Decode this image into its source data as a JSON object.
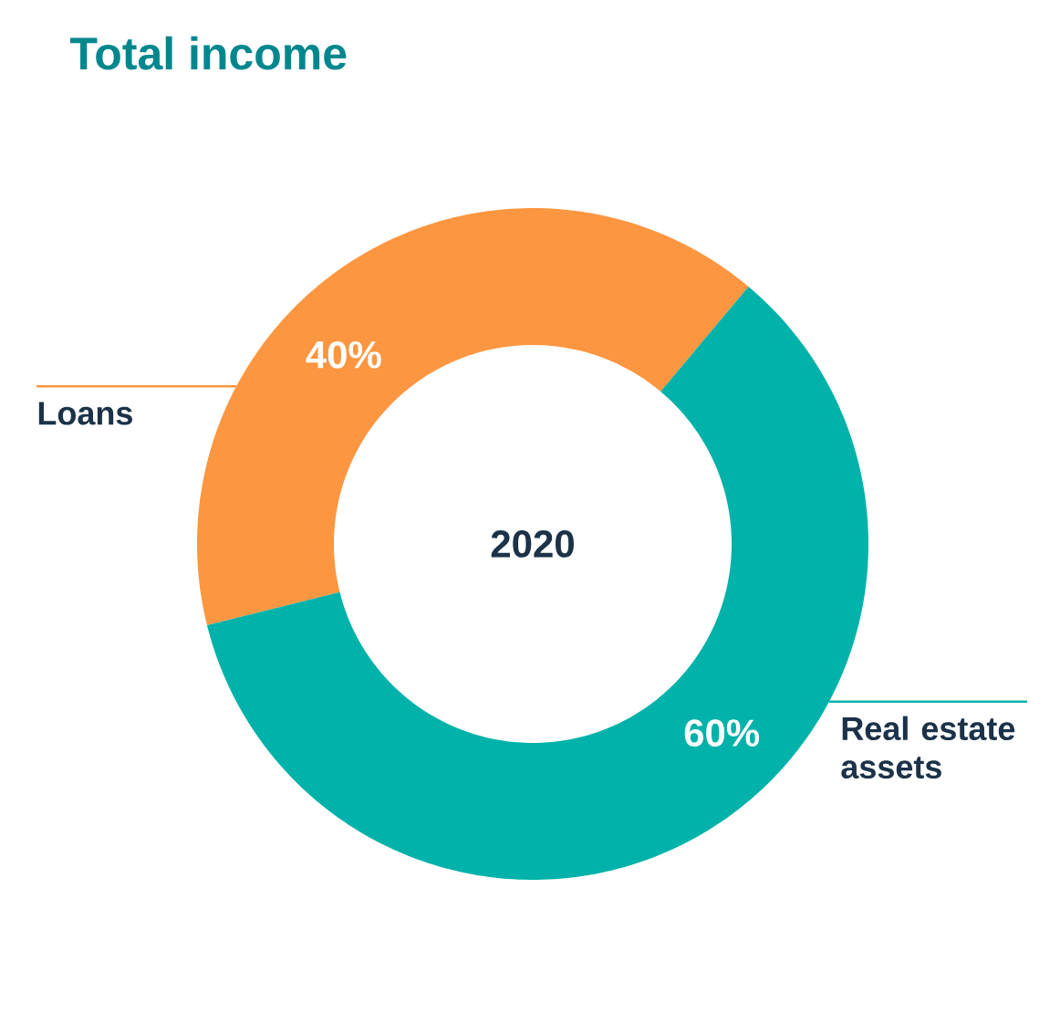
{
  "chart_data": {
    "type": "donut",
    "title": "Total income",
    "categories": [
      "Loans",
      "Real estate assets"
    ],
    "values": [
      40,
      60
    ],
    "colors": [
      "#fd9640",
      "#00b2a9"
    ],
    "value_labels": [
      "40%",
      "60%"
    ],
    "annotations": [
      "2020"
    ]
  }
}
